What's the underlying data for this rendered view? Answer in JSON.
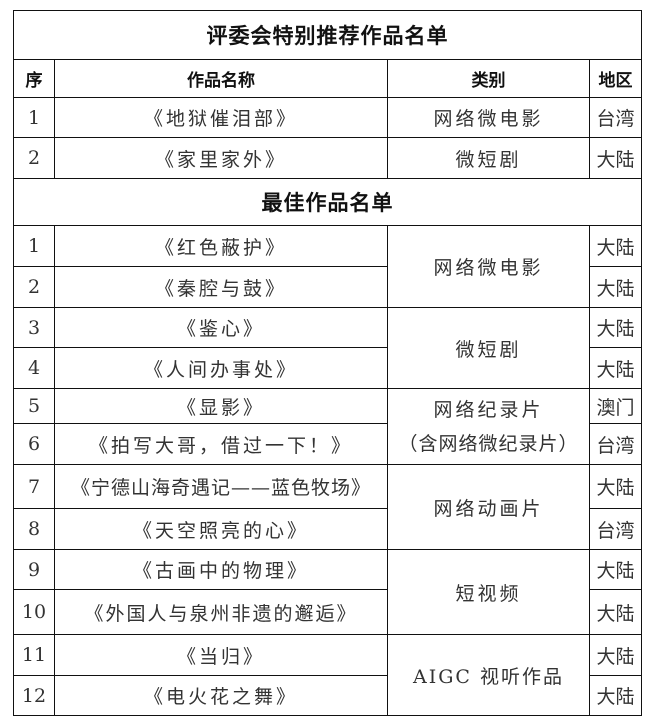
{
  "special": {
    "title": "评委会特别推荐作品名单",
    "headers": {
      "no": "序",
      "name": "作品名称",
      "category": "类别",
      "region": "地区"
    },
    "rows": [
      {
        "no": "1",
        "name": "《地狱催泪部》",
        "category": "网络微电影",
        "region": "台湾"
      },
      {
        "no": "2",
        "name": "《家里家外》",
        "category": "微短剧",
        "region": "大陆"
      }
    ]
  },
  "best": {
    "title": "最佳作品名单",
    "categories": [
      "网络微电影",
      "微短剧",
      "网络纪录片",
      "（含网络微纪录片）",
      "网络动画片",
      "短视频",
      "AIGC 视听作品"
    ],
    "rows": [
      {
        "no": "1",
        "name": "《红色蔽护》",
        "region": "大陆"
      },
      {
        "no": "2",
        "name": "《秦腔与鼓》",
        "region": "大陆"
      },
      {
        "no": "3",
        "name": "《鉴心》",
        "region": "大陆"
      },
      {
        "no": "4",
        "name": "《人间办事处》",
        "region": "大陆"
      },
      {
        "no": "5",
        "name": "《显影》",
        "region": "澳门"
      },
      {
        "no": "6",
        "name": "《拍写大哥，借过一下！》",
        "region": "台湾"
      },
      {
        "no": "7",
        "name": "《宁德山海奇遇记——蓝色牧场》",
        "region": "大陆"
      },
      {
        "no": "8",
        "name": "《天空照亮的心》",
        "region": "台湾"
      },
      {
        "no": "9",
        "name": "《古画中的物理》",
        "region": "大陆"
      },
      {
        "no": "10",
        "name": "《外国人与泉州非遗的邂逅》",
        "region": "大陆"
      },
      {
        "no": "11",
        "name": "《当归》",
        "region": "大陆"
      },
      {
        "no": "12",
        "name": "《电火花之舞》",
        "region": "大陆"
      }
    ]
  }
}
